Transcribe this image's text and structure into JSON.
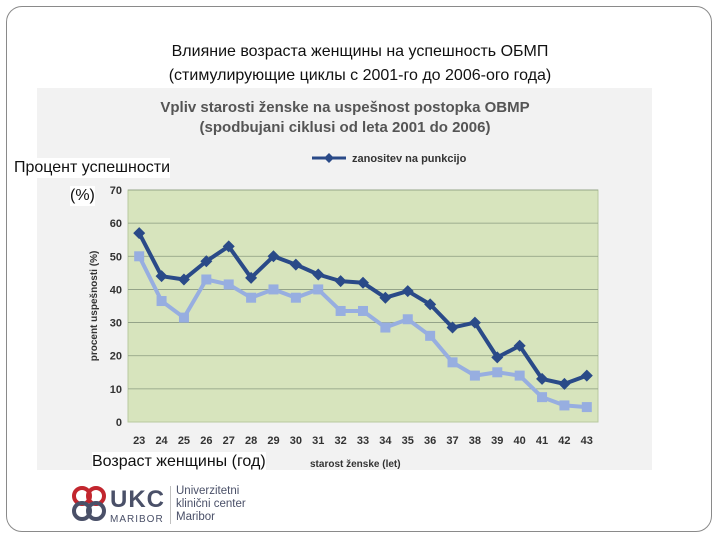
{
  "slide": {
    "title_line1": "Влияние возраста женщины на успешность ОБМП",
    "title_line2": "(стимулирующие циклы с 2001-го до 2006-ого года)",
    "ylabel_ru_line1": "Процент успешности",
    "ylabel_ru_line2": "(%)",
    "xlabel_ru": "Возраст женщины (год)"
  },
  "chart_data": {
    "type": "line",
    "title": "Vpliv starosti ženske na uspešnost postopka OBMP",
    "subtitle": "(spodbujani ciklusi od leta 2001 do 2006)",
    "xlabel": "starost ženske (let)",
    "ylabel": "procent uspešnosti (%)",
    "categories": [
      "23",
      "24",
      "25",
      "26",
      "27",
      "28",
      "29",
      "30",
      "31",
      "32",
      "33",
      "34",
      "35",
      "36",
      "37",
      "38",
      "39",
      "40",
      "41",
      "42",
      "43"
    ],
    "ylim": [
      0,
      70
    ],
    "yticks": [
      "0",
      "10",
      "20",
      "30",
      "40",
      "50",
      "60",
      "70"
    ],
    "grid": true,
    "legend_position": "top",
    "plot_background": "#d7e4bd",
    "series": [
      {
        "name": "zanositev na punkcijo",
        "color": "#2a4a88",
        "marker": "diamond",
        "values": [
          57,
          44,
          43,
          48.5,
          53,
          43.5,
          50,
          47.5,
          44.5,
          42.5,
          42,
          37.5,
          39.5,
          35.5,
          28.5,
          30,
          19.5,
          23,
          13,
          11.5,
          14
        ]
      },
      {
        "color": "#97aee0",
        "marker": "square",
        "values": [
          50,
          36.5,
          31.5,
          43,
          41.5,
          37.5,
          40,
          37.5,
          40,
          33.5,
          33.5,
          28.5,
          31,
          26,
          18,
          14,
          15,
          14,
          7.5,
          5,
          4.5
        ]
      }
    ]
  },
  "logo": {
    "mark_text": "UKC",
    "sub_text": "MARIBOR",
    "name_line1": "Univerzitetni",
    "name_line2": "klinični center",
    "name_line3": "Maribor",
    "color": "#4a5068",
    "accent": "#c2262e"
  }
}
